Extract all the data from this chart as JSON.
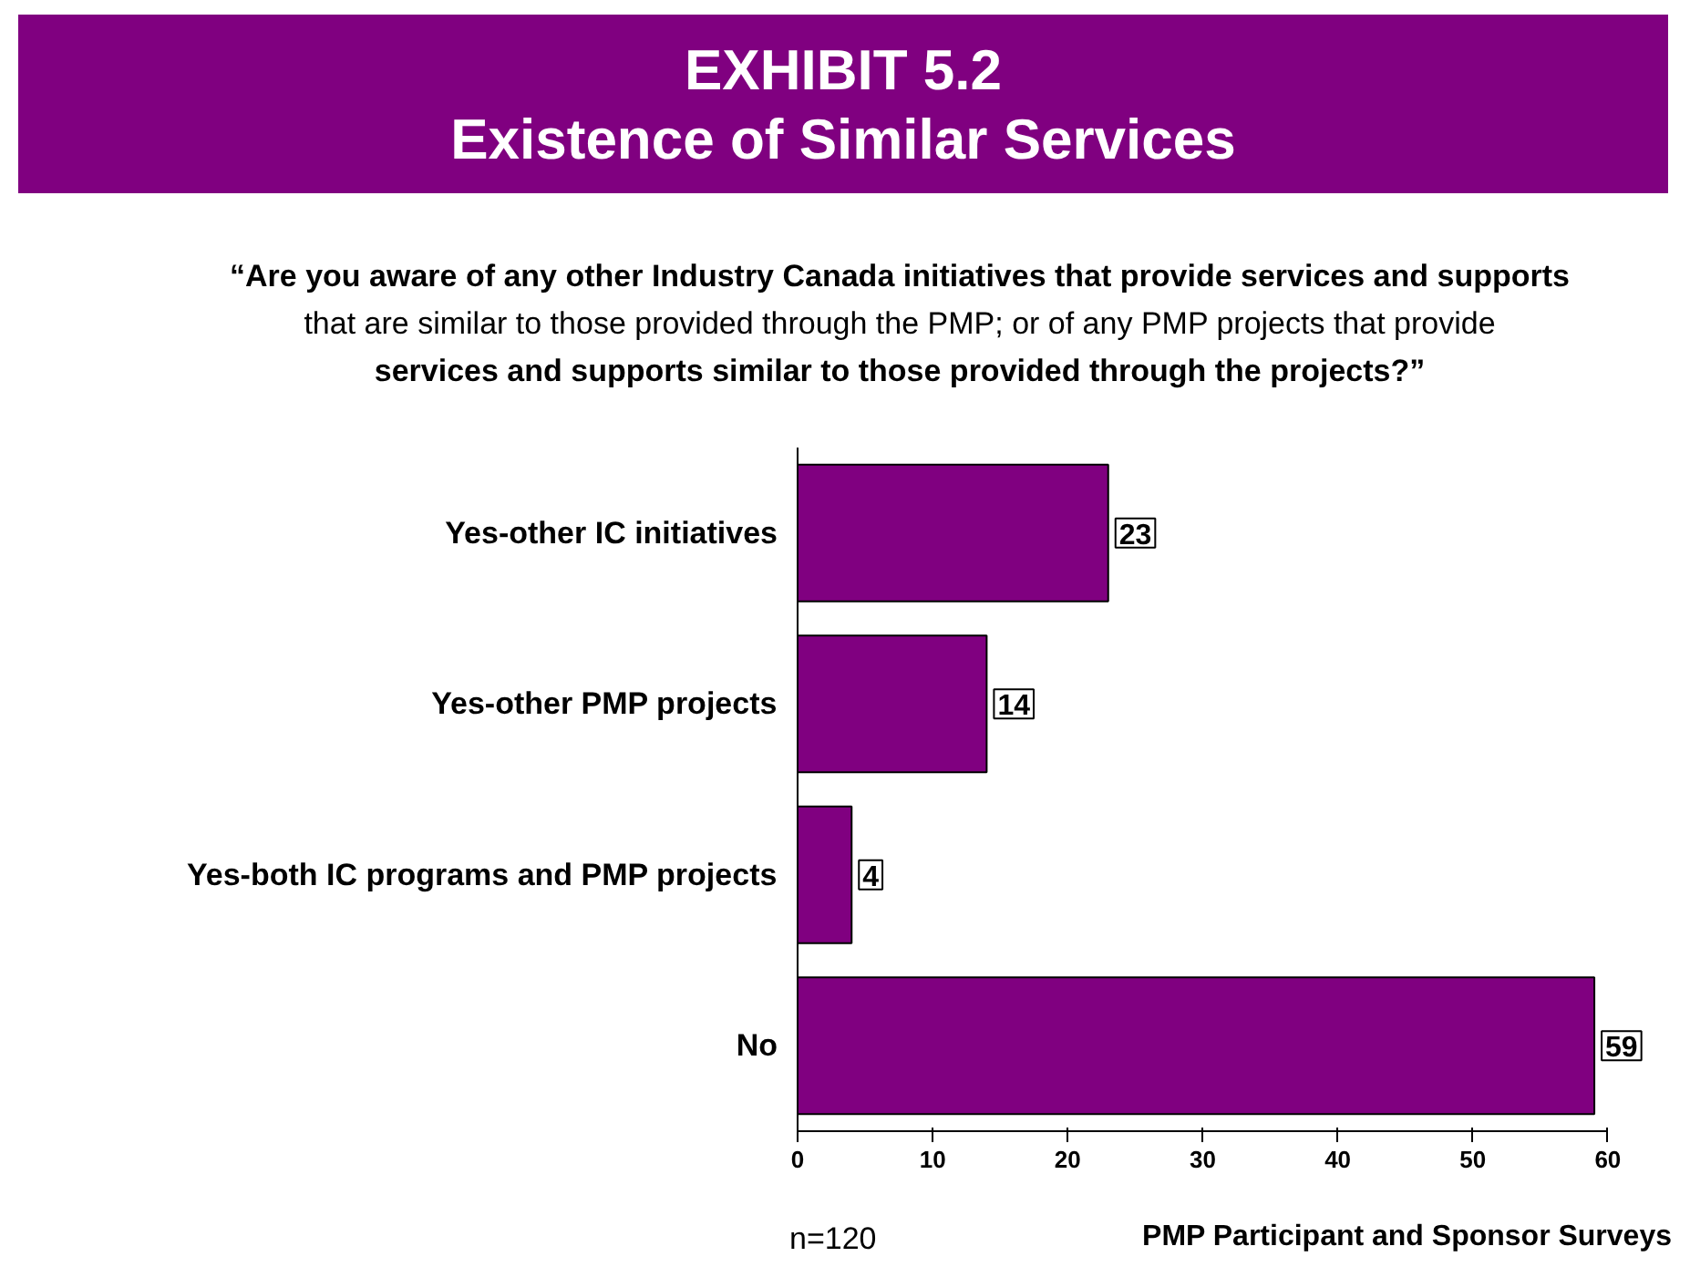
{
  "chart_data": {
    "type": "bar",
    "orientation": "horizontal",
    "title": "EXHIBIT 5.2",
    "subtitle": "Existence of Similar Services",
    "categories": [
      "Yes-other IC initiatives",
      "Yes-other PMP projects",
      "Yes-both IC programs and PMP projects",
      "No"
    ],
    "values": [
      23,
      14,
      4,
      59
    ],
    "color": "#800080",
    "xlim": [
      0,
      60
    ],
    "xticks": [
      0,
      10,
      20,
      30,
      40,
      50,
      60
    ],
    "grid": false,
    "data_labels": true,
    "annotations": [
      "“Are you aware of any other Industry Canada initiatives that provide services and supports\nthat are similar to those provided through the PMP; or of any PMP projects that provide\nservices and supports similar to those provided through the projects?”",
      "n=120",
      "PMP Participant and Sponsor Surveys"
    ]
  }
}
